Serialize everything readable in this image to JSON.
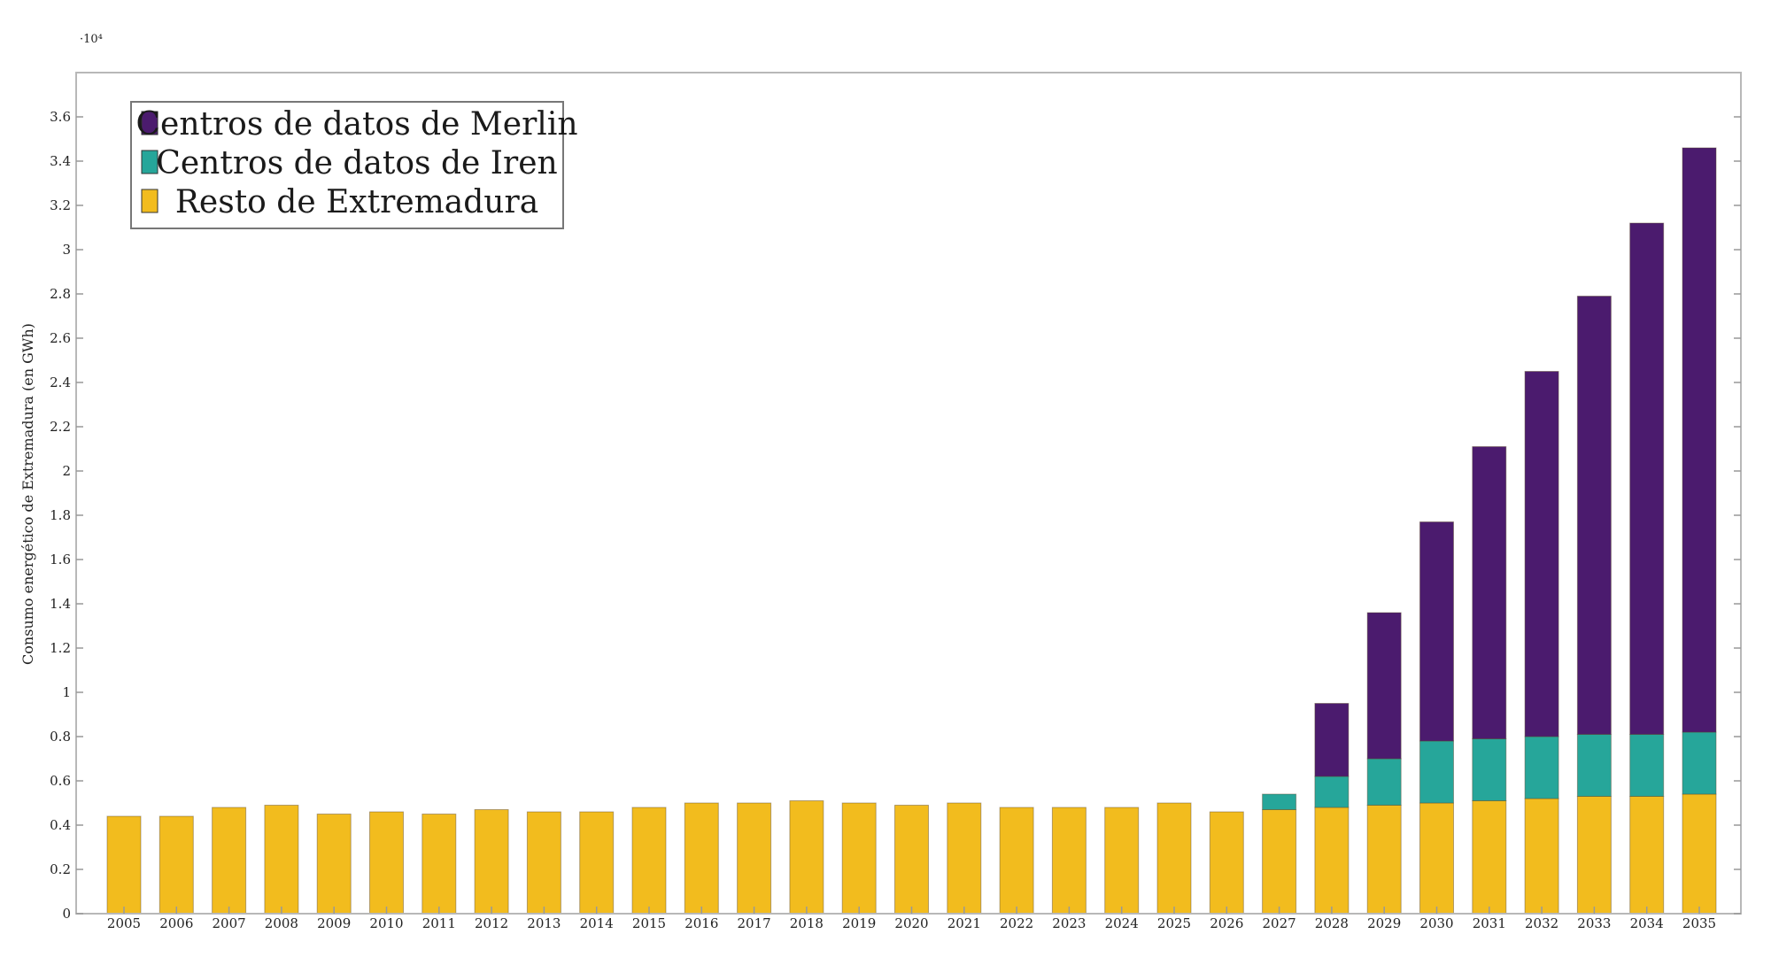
{
  "chart_data": {
    "type": "bar",
    "stacked": true,
    "title": "",
    "xlabel": "",
    "ylabel": "Consumo energético de Extremadura (en GWh)",
    "y_multiplier_label": "·10⁴",
    "ylim": [
      0,
      3.8
    ],
    "yticks": [
      "0",
      "0.2",
      "0.4",
      "0.6",
      "0.8",
      "1",
      "1.2",
      "1.4",
      "1.6",
      "1.8",
      "2",
      "2.2",
      "2.4",
      "2.6",
      "2.8",
      "3",
      "3.2",
      "3.4",
      "3.6"
    ],
    "legend_position": "top-left",
    "grid": false,
    "categories": [
      "2005",
      "2006",
      "2007",
      "2008",
      "2009",
      "2010",
      "2011",
      "2012",
      "2013",
      "2014",
      "2015",
      "2016",
      "2017",
      "2018",
      "2019",
      "2020",
      "2021",
      "2022",
      "2023",
      "2024",
      "2025",
      "2026",
      "2027",
      "2028",
      "2029",
      "2030",
      "2031",
      "2032",
      "2033",
      "2034",
      "2035"
    ],
    "series": [
      {
        "name": "Resto de Extremadura",
        "color": "#f2bc1e",
        "values": [
          0.44,
          0.44,
          0.48,
          0.49,
          0.45,
          0.46,
          0.45,
          0.47,
          0.46,
          0.46,
          0.48,
          0.5,
          0.5,
          0.51,
          0.5,
          0.49,
          0.5,
          0.48,
          0.48,
          0.48,
          0.5,
          0.46,
          0.47,
          0.48,
          0.49,
          0.5,
          0.51,
          0.52,
          0.53,
          0.53,
          0.54
        ]
      },
      {
        "name": "Centros de datos de Iren",
        "color": "#26a69a",
        "values": [
          0,
          0,
          0,
          0,
          0,
          0,
          0,
          0,
          0,
          0,
          0,
          0,
          0,
          0,
          0,
          0,
          0,
          0,
          0,
          0,
          0,
          0,
          0.07,
          0.14,
          0.21,
          0.28,
          0.28,
          0.28,
          0.28,
          0.28,
          0.28
        ]
      },
      {
        "name": "Centros de datos de Merlin",
        "color": "#4b1b6e",
        "values": [
          0,
          0,
          0,
          0,
          0,
          0,
          0,
          0,
          0,
          0,
          0,
          0,
          0,
          0,
          0,
          0,
          0,
          0,
          0,
          0,
          0,
          0,
          0,
          0.33,
          0.66,
          0.99,
          1.32,
          1.65,
          1.98,
          2.31,
          2.64
        ]
      }
    ]
  },
  "legend_order": [
    "Centros de datos de Merlin",
    "Centros de datos de Iren",
    "Resto de Extremadura"
  ]
}
